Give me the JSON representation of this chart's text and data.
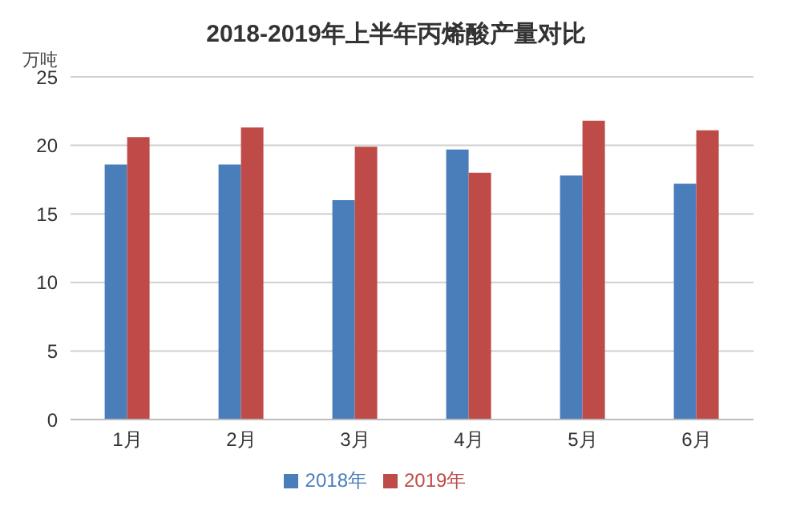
{
  "chart_data": {
    "type": "bar",
    "title": "2018-2019年上半年丙烯酸产量对比",
    "ylabel": "万吨",
    "categories": [
      "1月",
      "2月",
      "3月",
      "4月",
      "5月",
      "6月"
    ],
    "series": [
      {
        "name": "2018年",
        "color": "#4a7ebb",
        "values": [
          18.6,
          18.6,
          16.0,
          19.7,
          17.8,
          17.2
        ]
      },
      {
        "name": "2019年",
        "color": "#be4b48",
        "values": [
          20.6,
          21.3,
          19.9,
          18.0,
          21.8,
          21.1
        ]
      }
    ],
    "ylim": [
      0,
      25
    ],
    "yticks": [
      0,
      5,
      10,
      15,
      20,
      25
    ],
    "grid": "y",
    "legend": "bottom"
  }
}
